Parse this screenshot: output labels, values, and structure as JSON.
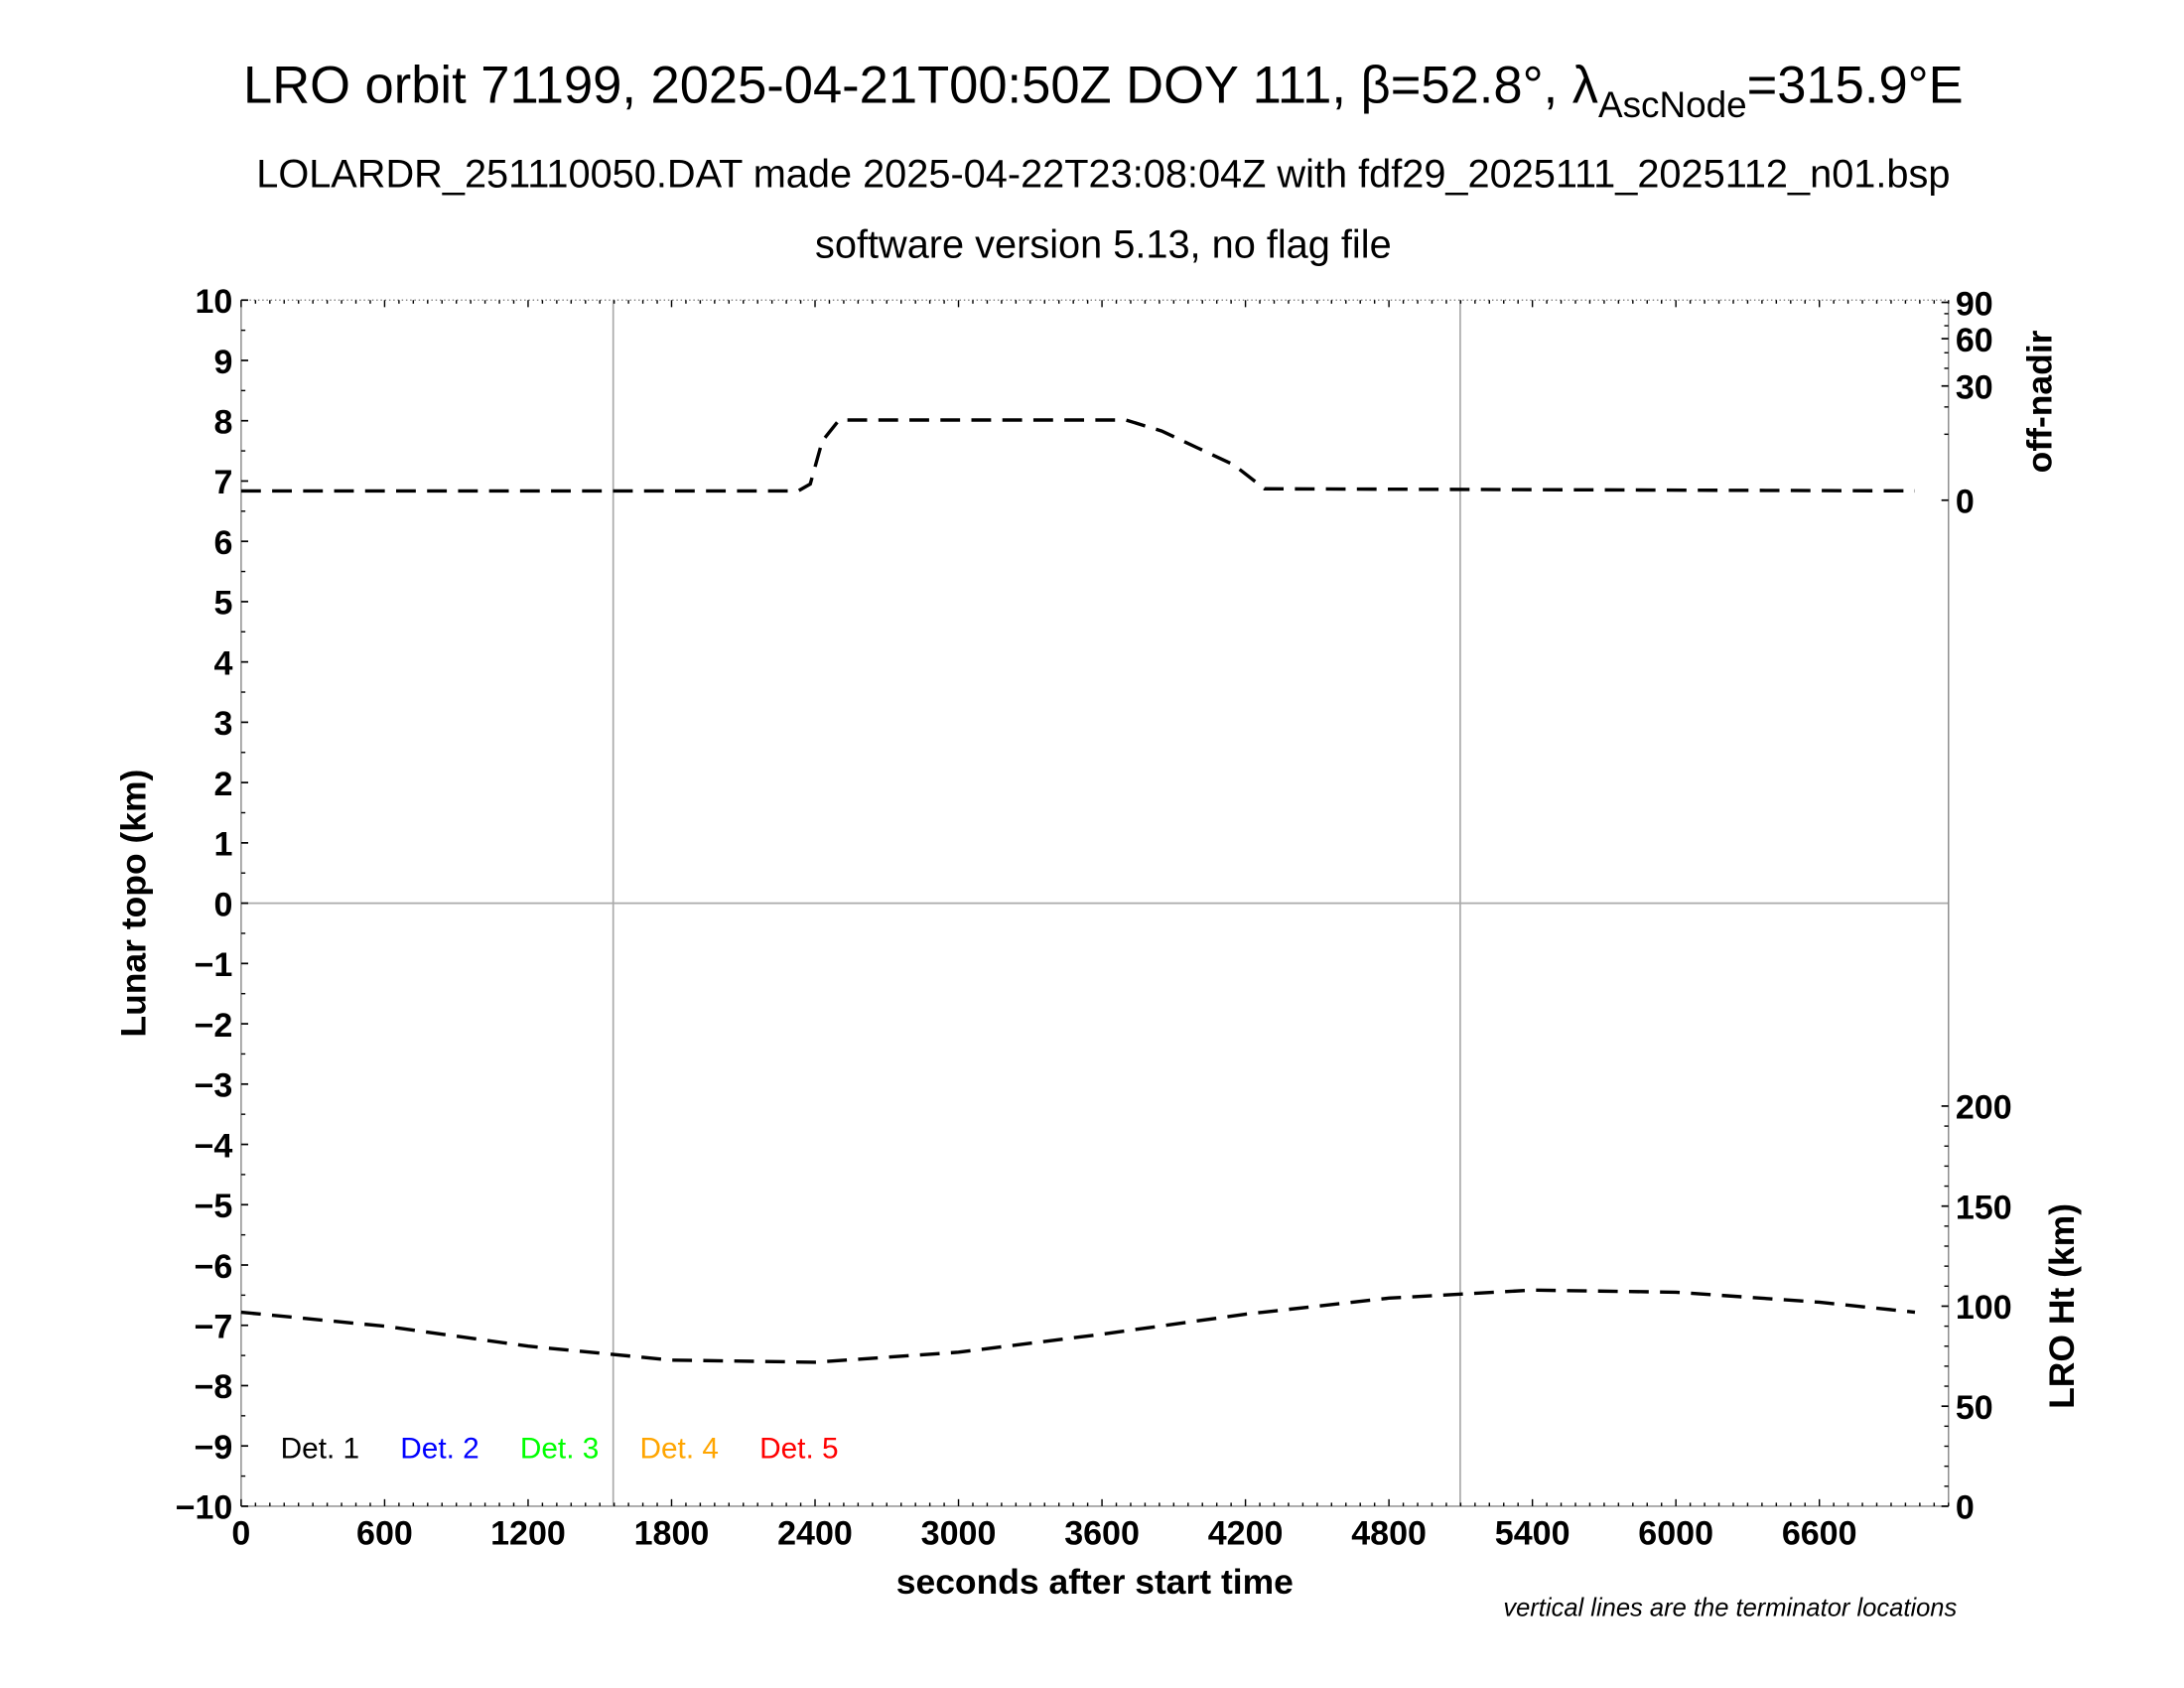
{
  "title": {
    "main_prefix": "LRO orbit 71199, 2025-04-21T00:50Z DOY 111, β=52.8°, λ",
    "main_subscript": "AscNode",
    "main_suffix": "=315.9°E",
    "line2": "LOLARDR_251110050.DAT made 2025-04-22T23:08:04Z with fdf29_2025111_2025112_n01.bsp",
    "line3": "software version 5.13, no flag file"
  },
  "footnote": "vertical lines are the terminator locations",
  "chart_data": {
    "type": "line",
    "xlabel": "seconds after start time",
    "xlim": [
      0,
      7140
    ],
    "x_ticks": [
      "0",
      "600",
      "1200",
      "1800",
      "2400",
      "3000",
      "3600",
      "4200",
      "4800",
      "5400",
      "6000",
      "6600"
    ],
    "grid": false,
    "terminators_s": [
      1556,
      5098
    ],
    "left_axis": {
      "label": "Lunar topo (km)",
      "ylim": [
        -10,
        10
      ],
      "ticks": [
        "10",
        "9",
        "8",
        "7",
        "6",
        "5",
        "4",
        "3",
        "2",
        "1",
        "0",
        "−1",
        "−2",
        "−3",
        "−4",
        "−5",
        "−6",
        "−7",
        "−8",
        "−9",
        "−10"
      ]
    },
    "right_axis_top": {
      "label": "off-nadir",
      "scale": "sqrt",
      "ylim": [
        0,
        90
      ],
      "ticks": [
        "90",
        "60",
        "30",
        "0"
      ]
    },
    "right_axis_bottom": {
      "label": "LRO Ht (km)",
      "ticks": [
        "200",
        "150",
        "100",
        "50",
        "0"
      ]
    },
    "legend": {
      "placement": "bottom-left",
      "entries": [
        {
          "label": "Det. 1",
          "color": "#000000"
        },
        {
          "label": "Det. 2",
          "color": "#0000ff"
        },
        {
          "label": "Det. 3",
          "color": "#00ff00"
        },
        {
          "label": "Det. 4",
          "color": "#ffa500"
        },
        {
          "label": "Det. 5",
          "color": "#ff0000"
        }
      ]
    },
    "series": [
      {
        "axis": "off-nadir",
        "style": "dashed",
        "color": "#000000",
        "x": [
          0,
          2330,
          2380,
          2430,
          2500,
          3700,
          3850,
          4000,
          4150,
          4280,
          7000
        ],
        "y": [
          0.2,
          0.2,
          0.6,
          8,
          14.8,
          14.8,
          11,
          6.3,
          2.9,
          0.3,
          0.2
        ]
      },
      {
        "axis": "LRO Ht (km)",
        "style": "dashed",
        "color": "#000000",
        "x": [
          0,
          600,
          1200,
          1800,
          2400,
          3000,
          3600,
          4200,
          4800,
          5400,
          6000,
          6600,
          7000
        ],
        "y": [
          97,
          90,
          80,
          73,
          72,
          77,
          86,
          96,
          104,
          108,
          107,
          102,
          97
        ]
      }
    ]
  }
}
